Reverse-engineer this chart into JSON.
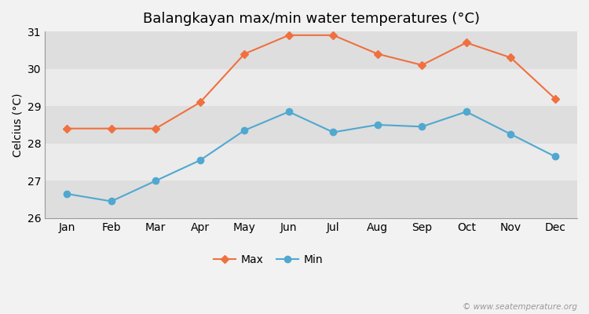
{
  "title": "Balangkayan max/min water temperatures (°C)",
  "ylabel": "Celcius (°C)",
  "months": [
    "Jan",
    "Feb",
    "Mar",
    "Apr",
    "May",
    "Jun",
    "Jul",
    "Aug",
    "Sep",
    "Oct",
    "Nov",
    "Dec"
  ],
  "max_temps": [
    28.4,
    28.4,
    28.4,
    29.1,
    30.4,
    30.9,
    30.9,
    30.4,
    30.1,
    30.7,
    30.3,
    29.2
  ],
  "min_temps": [
    26.65,
    26.45,
    27.0,
    27.55,
    28.35,
    28.85,
    28.3,
    28.5,
    28.45,
    28.85,
    28.25,
    27.65
  ],
  "max_color": "#f07040",
  "min_color": "#50a8d0",
  "bg_color": "#f2f2f2",
  "band_light": "#ebebeb",
  "band_dark": "#dedede",
  "ylim": [
    26,
    31
  ],
  "yticks": [
    26,
    27,
    28,
    29,
    30,
    31
  ],
  "watermark": "© www.seatemperature.org",
  "title_fontsize": 13,
  "label_fontsize": 10,
  "tick_fontsize": 10
}
